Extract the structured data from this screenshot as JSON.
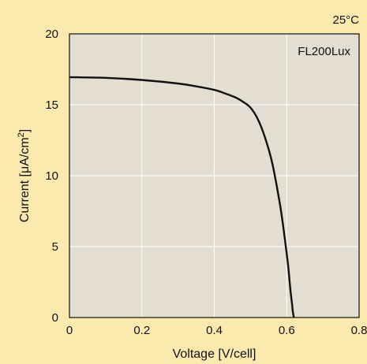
{
  "chart_data": {
    "type": "line",
    "title": "",
    "xlabel": "Voltage [V/cell]",
    "ylabel": "Current [μA/cm",
    "ylabel_sup": "2",
    "ylabel_close": "]",
    "xlim": [
      0,
      0.8
    ],
    "ylim": [
      0,
      20
    ],
    "x_ticks": [
      0,
      0.2,
      0.4,
      0.6,
      0.8
    ],
    "x_tick_labels": [
      "0",
      "0.2",
      "0.4",
      "0.6",
      "0.8"
    ],
    "y_ticks": [
      0,
      5,
      10,
      15,
      20
    ],
    "y_tick_labels": [
      "0",
      "5",
      "10",
      "15",
      "20"
    ],
    "grid": true,
    "temperature_label": "25°C",
    "series": [
      {
        "name": "FL200Lux",
        "color": "#111111",
        "x": [
          0,
          0.1,
          0.2,
          0.3,
          0.35,
          0.4,
          0.43,
          0.46,
          0.48,
          0.5,
          0.52,
          0.54,
          0.56,
          0.58,
          0.59,
          0.6,
          0.605,
          0.61,
          0.615,
          0.617,
          0.62
        ],
        "y": [
          16.95,
          16.9,
          16.75,
          16.5,
          16.3,
          16.05,
          15.8,
          15.5,
          15.2,
          14.8,
          14.0,
          12.7,
          10.9,
          8.2,
          6.5,
          4.5,
          3.4,
          2.0,
          0.9,
          0.4,
          0
        ]
      }
    ]
  },
  "colors": {
    "page_background": "#fbe9ad",
    "plot_background": "#e4ddd1",
    "grid": "#ffffff",
    "line": "#111111"
  }
}
